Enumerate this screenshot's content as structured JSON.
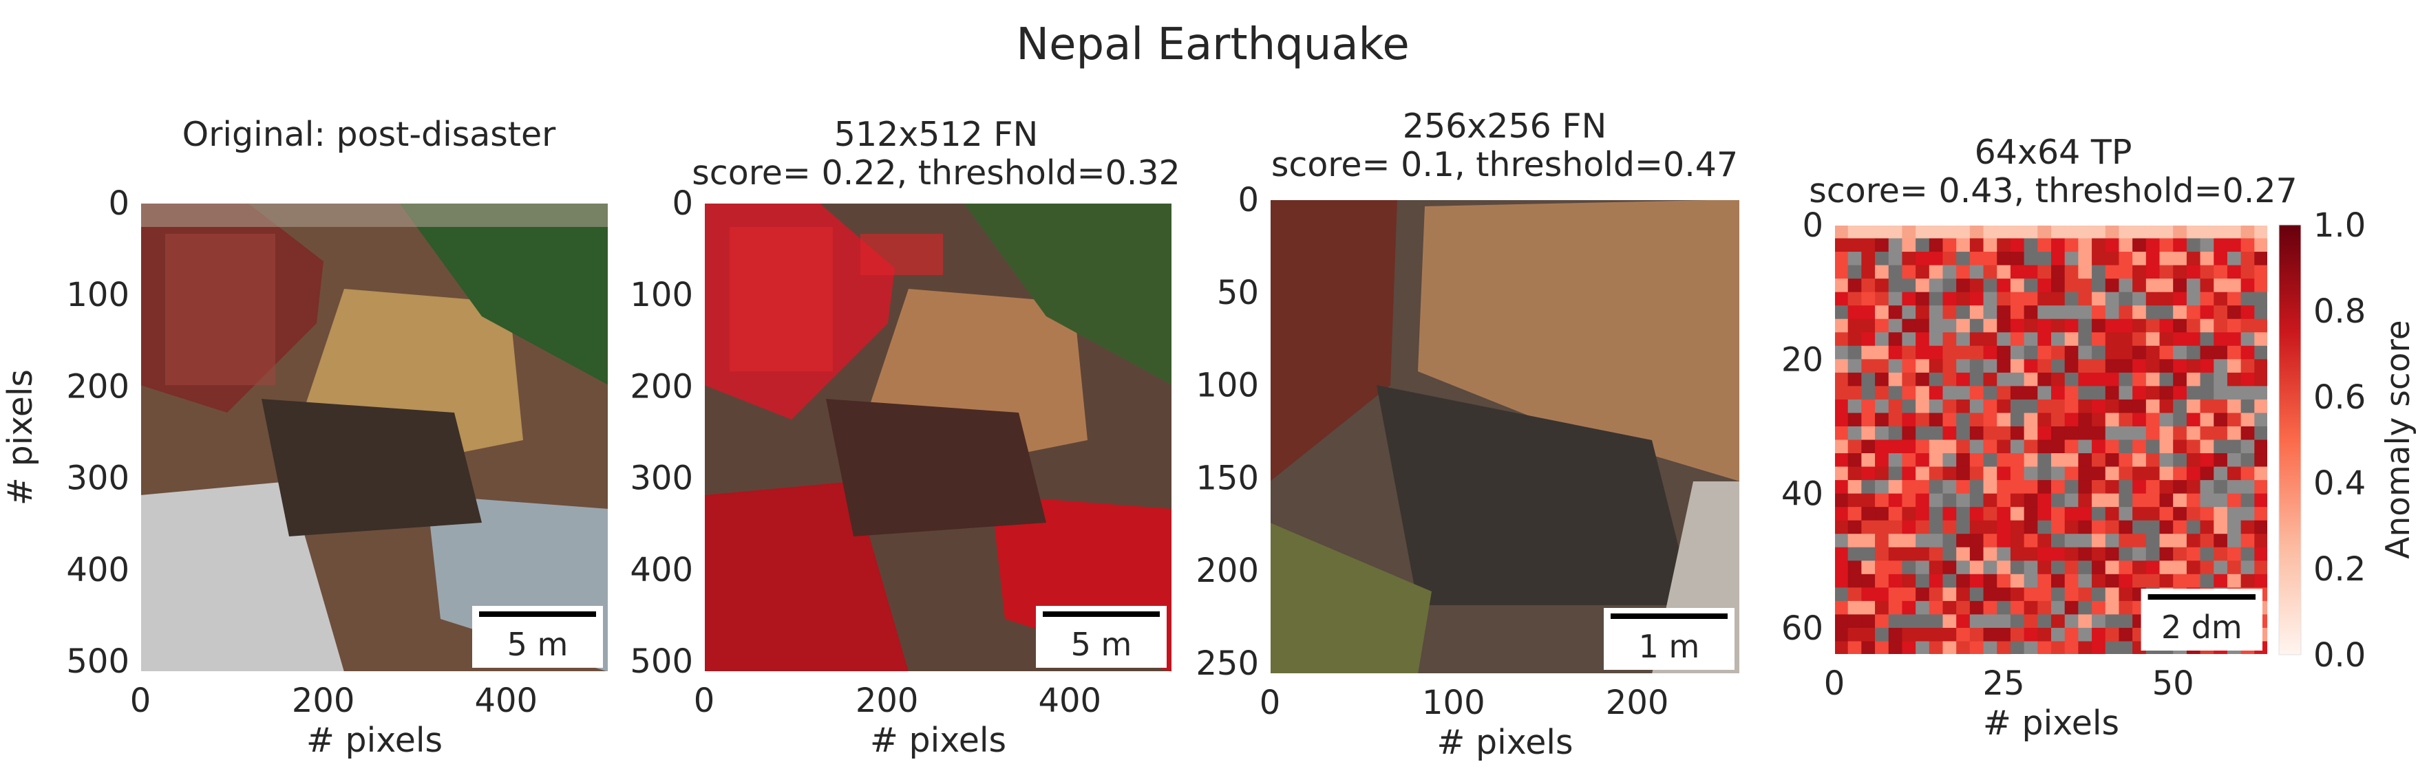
{
  "figure": {
    "title": "Nepal Earthquake"
  },
  "chart_data": [
    {
      "type": "image",
      "title": "Original: post-disaster",
      "xlabel": "# pixels",
      "ylabel": "# pixels",
      "xlim": [
        0,
        512
      ],
      "ylim": [
        512,
        0
      ],
      "xticks": [
        0,
        200,
        400
      ],
      "yticks": [
        0,
        100,
        200,
        300,
        400,
        500
      ],
      "scalebar": "5 m"
    },
    {
      "type": "heatmap",
      "title_lines": [
        "512x512 FN",
        "score= 0.22, threshold=0.32"
      ],
      "xlabel": "# pixels",
      "xlim": [
        0,
        512
      ],
      "ylim": [
        512,
        0
      ],
      "xticks": [
        0,
        200,
        400
      ],
      "yticks": [
        0,
        100,
        200,
        300,
        400,
        500
      ],
      "score": 0.22,
      "threshold": 0.32,
      "scalebar": "5 m"
    },
    {
      "type": "heatmap",
      "title_lines": [
        "256x256 FN",
        "score= 0.1, threshold=0.47"
      ],
      "xlabel": "# pixels",
      "xlim": [
        0,
        256
      ],
      "ylim": [
        256,
        0
      ],
      "xticks": [
        0,
        100,
        200
      ],
      "yticks": [
        0,
        50,
        100,
        150,
        200,
        250
      ],
      "score": 0.1,
      "threshold": 0.47,
      "scalebar": "1 m"
    },
    {
      "type": "heatmap",
      "title_lines": [
        "64x64 TP",
        "score= 0.43, threshold=0.27"
      ],
      "xlabel": "# pixels",
      "xlim": [
        0,
        64
      ],
      "ylim": [
        64,
        0
      ],
      "xticks": [
        0,
        25,
        50
      ],
      "yticks": [
        0,
        20,
        40,
        60
      ],
      "score": 0.43,
      "threshold": 0.27,
      "scalebar": "2 dm",
      "colorbar": {
        "label": "Anomaly score",
        "range": [
          0.0,
          1.0
        ],
        "ticks": [
          "0.0",
          "0.2",
          "0.4",
          "0.6",
          "0.8",
          "1.0"
        ],
        "colors": [
          "#fff5f0",
          "#fcbba1",
          "#fb6a4a",
          "#cb181d",
          "#67000d"
        ]
      }
    }
  ]
}
